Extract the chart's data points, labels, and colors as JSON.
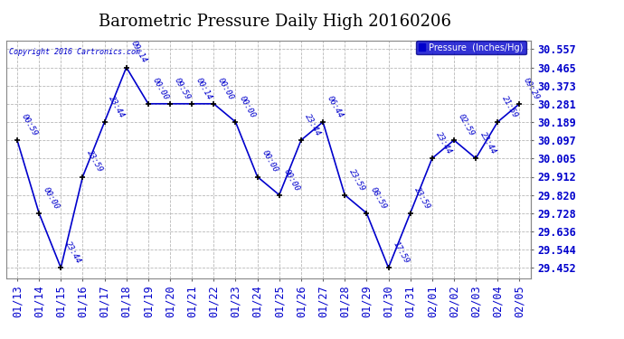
{
  "title": "Barometric Pressure Daily High 20160206",
  "copyright": "Copyright 2016 Cartronics.com",
  "legend_label": "Pressure  (Inches/Hg)",
  "x_labels": [
    "01/13",
    "01/14",
    "01/15",
    "01/16",
    "01/17",
    "01/18",
    "01/19",
    "01/20",
    "01/21",
    "01/22",
    "01/23",
    "01/24",
    "01/25",
    "01/26",
    "01/27",
    "01/28",
    "01/29",
    "01/30",
    "01/31",
    "02/01",
    "02/02",
    "02/03",
    "02/04",
    "02/05"
  ],
  "y_values": [
    30.097,
    29.728,
    29.452,
    29.912,
    30.189,
    30.465,
    30.281,
    30.281,
    30.281,
    30.281,
    30.189,
    29.912,
    29.82,
    30.097,
    30.189,
    29.82,
    29.728,
    29.452,
    29.728,
    30.005,
    30.097,
    30.005,
    30.189,
    30.281
  ],
  "time_labels": [
    "00:59",
    "00:00",
    "23:44",
    "23:59",
    "23:44",
    "09:14",
    "00:00",
    "09:59",
    "00:14",
    "00:00",
    "00:00",
    "00:00",
    "00:00",
    "23:44",
    "06:44",
    "23:59",
    "08:59",
    "17:59",
    "23:59",
    "23:44",
    "02:59",
    "23:44",
    "21:59",
    "09:29"
  ],
  "y_ticks": [
    29.452,
    29.544,
    29.636,
    29.728,
    29.82,
    29.912,
    30.005,
    30.097,
    30.189,
    30.281,
    30.373,
    30.465,
    30.557
  ],
  "ylim_min": 29.4,
  "ylim_max": 30.6,
  "line_color": "#0000cc",
  "bg_color": "#ffffff",
  "grid_color": "#b0b0b0",
  "title_fontsize": 13,
  "tick_fontsize": 8.5,
  "annot_fontsize": 6.5
}
